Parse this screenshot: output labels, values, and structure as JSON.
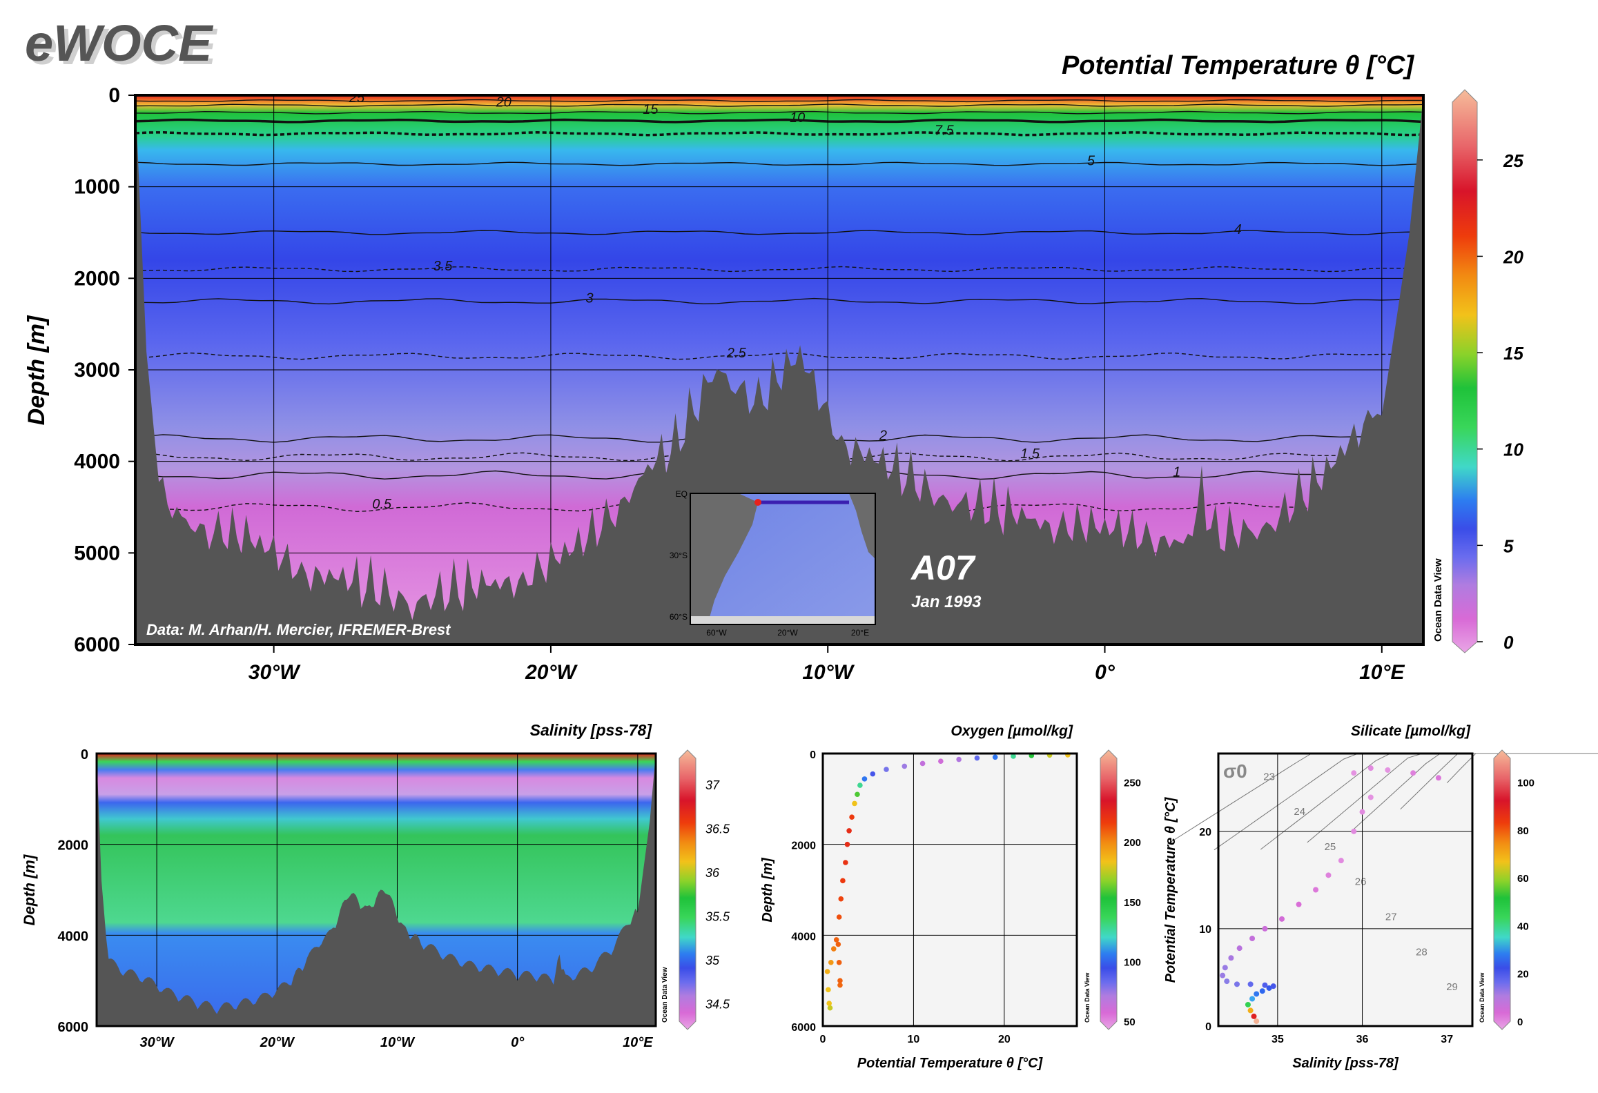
{
  "brand": "eWOCE",
  "colormap": [
    "#e9a6e6",
    "#d86ad6",
    "#c070dc",
    "#8e7fe6",
    "#5a66ee",
    "#3a4de8",
    "#2d6bf0",
    "#38a8f0",
    "#40d8c8",
    "#39d65a",
    "#1fc23a",
    "#8ad22a",
    "#f2c21a",
    "#f28a12",
    "#ee3c0c",
    "#d8142a",
    "#e8666a",
    "#f4b294"
  ],
  "main": {
    "chart_data": {
      "type": "heatmap",
      "title": "Potential Temperature θ [°C]",
      "ylabel": "Depth [m]",
      "xlim": [
        -35,
        11.5
      ],
      "ylim": [
        0,
        6000
      ],
      "x_ticks": [
        -30,
        -20,
        -10,
        0,
        10
      ],
      "x_tick_labels": [
        "30°W",
        "20°W",
        "10°W",
        "0°",
        "10°E"
      ],
      "y_ticks": [
        0,
        1000,
        2000,
        3000,
        4000,
        5000,
        6000
      ],
      "y_tick_labels": [
        "0",
        "1000",
        "2000",
        "3000",
        "4000",
        "5000",
        "6000"
      ],
      "colorbar": {
        "min": 0,
        "max": 28,
        "ticks": [
          0,
          5,
          10,
          15,
          20,
          25
        ],
        "tick_labels": [
          "0",
          "5",
          "10",
          "15",
          "20",
          "25"
        ]
      },
      "isotherms": [
        {
          "label": "25",
          "depth": 60
        },
        {
          "label": "20",
          "depth": 110
        },
        {
          "label": "15",
          "depth": 190
        },
        {
          "label": "10",
          "depth": 280
        },
        {
          "label": "7.5",
          "depth": 420
        },
        {
          "label": "5",
          "depth": 750
        },
        {
          "label": "4",
          "depth": 1500
        },
        {
          "label": "3.5",
          "depth": 1900
        },
        {
          "label": "3",
          "depth": 2250
        },
        {
          "label": "2.5",
          "depth": 2850
        },
        {
          "label": "2",
          "depth": 3750
        },
        {
          "label": "1.5",
          "depth": 3950
        },
        {
          "label": "1",
          "depth": 4150
        },
        {
          "label": "0.5",
          "depth": 4500
        }
      ],
      "bottom_profile": {
        "lon": [
          -35,
          -34.6,
          -34,
          -33,
          -31,
          -29,
          -27,
          -25,
          -23,
          -21,
          -19,
          -17.5,
          -16.5,
          -15.5,
          -14,
          -12.5,
          -11,
          -9.5,
          -8,
          -6,
          -4,
          -2,
          0,
          2,
          3,
          3.5,
          4,
          6,
          8,
          10,
          11,
          11.5
        ],
        "depth": [
          0,
          2800,
          4700,
          4900,
          5100,
          5400,
          5600,
          5750,
          5650,
          5500,
          5200,
          4700,
          4300,
          4100,
          3200,
          3600,
          3100,
          4000,
          4300,
          4600,
          4800,
          4900,
          5000,
          5050,
          5150,
          4600,
          5100,
          4900,
          4400,
          3500,
          1500,
          0
        ]
      }
    },
    "credit": "Data: M. Arhan/H. Mercier, IFREMER-Brest",
    "section": "A07",
    "date": "Jan 1993",
    "odv": "Ocean Data View"
  },
  "inset_map": {
    "lat_labels": [
      "EQ",
      "30°S",
      "60°S"
    ],
    "lon_labels": [
      "60°W",
      "20°W",
      "20°E"
    ]
  },
  "salinity": {
    "chart_data": {
      "type": "heatmap",
      "title": "Salinity [pss-78]",
      "ylabel": "Depth [m]",
      "xlim": [
        -35,
        11.5
      ],
      "ylim": [
        0,
        6000
      ],
      "y_tick_labels": [
        "0",
        "2000",
        "4000",
        "6000"
      ],
      "x_tick_labels": [
        "30°W",
        "20°W",
        "10°W",
        "0°",
        "10°E"
      ],
      "colorbar": {
        "min": 34.3,
        "max": 37.3,
        "tick_labels": [
          "34.5",
          "35",
          "35.5",
          "36",
          "36.5",
          "37"
        ]
      }
    },
    "odv": "Ocean Data View"
  },
  "oxygen": {
    "chart_data": {
      "type": "scatter",
      "title": "Oxygen [µmol/kg]",
      "xlabel": "Potential Temperature θ [°C]",
      "ylabel": "Depth [m]",
      "xlim": [
        0,
        28
      ],
      "ylim": [
        0,
        6000
      ],
      "x_tick_labels": [
        "0",
        "10",
        "20"
      ],
      "y_tick_labels": [
        "0",
        "2000",
        "4000",
        "6000"
      ],
      "colorbar": {
        "min": 50,
        "max": 270,
        "tick_labels": [
          "50",
          "100",
          "150",
          "200",
          "250"
        ]
      },
      "points": [
        [
          0.8,
          5600,
          200
        ],
        [
          0.6,
          5200,
          205
        ],
        [
          0.5,
          4800,
          210
        ],
        [
          0.9,
          4600,
          215
        ],
        [
          1.2,
          4300,
          220
        ],
        [
          1.5,
          4100,
          225
        ],
        [
          1.8,
          3600,
          228
        ],
        [
          2.0,
          3200,
          230
        ],
        [
          2.2,
          2800,
          232
        ],
        [
          2.5,
          2400,
          234
        ],
        [
          2.7,
          2000,
          236
        ],
        [
          2.9,
          1700,
          236
        ],
        [
          3.2,
          1400,
          232
        ],
        [
          3.5,
          1100,
          205
        ],
        [
          3.8,
          900,
          185
        ],
        [
          4.1,
          700,
          160
        ],
        [
          4.6,
          560,
          130
        ],
        [
          5.5,
          450,
          110
        ],
        [
          7,
          350,
          95
        ],
        [
          9,
          280,
          85
        ],
        [
          11,
          220,
          75
        ],
        [
          13,
          170,
          68
        ],
        [
          15,
          130,
          80
        ],
        [
          17,
          100,
          100
        ],
        [
          19,
          80,
          130
        ],
        [
          21,
          60,
          160
        ],
        [
          23,
          45,
          180
        ],
        [
          25,
          35,
          200
        ],
        [
          27,
          30,
          205
        ],
        [
          1.7,
          4200,
          225
        ],
        [
          1.8,
          4600,
          225
        ],
        [
          1.9,
          5000,
          225
        ],
        [
          1.9,
          5100,
          224
        ],
        [
          0.7,
          5500,
          205
        ]
      ]
    },
    "odv": "Ocean Data View"
  },
  "silicate": {
    "chart_data": {
      "type": "scatter",
      "title": "Silicate [µmol/kg]",
      "xlabel": "Salinity [pss-78]",
      "ylabel": "Potential Temperature θ [°C]",
      "xlim": [
        34.3,
        37.3
      ],
      "ylim": [
        0,
        28
      ],
      "x_tick_labels": [
        "35",
        "36",
        "37"
      ],
      "y_tick_labels": [
        "0",
        "10",
        "20"
      ],
      "colorbar": {
        "min": 0,
        "max": 110,
        "tick_labels": [
          "0",
          "20",
          "40",
          "60",
          "80",
          "100"
        ]
      },
      "sigma_label": "σ0",
      "isopycnal_labels": [
        "23",
        "24",
        "25",
        "26",
        "27",
        "28",
        "29"
      ],
      "points": [
        [
          34.75,
          0.5,
          110
        ],
        [
          34.72,
          1.0,
          95
        ],
        [
          34.68,
          1.6,
          80
        ],
        [
          34.65,
          2.2,
          60
        ],
        [
          34.7,
          2.8,
          45
        ],
        [
          34.75,
          3.3,
          40
        ],
        [
          34.82,
          3.6,
          38
        ],
        [
          34.9,
          3.9,
          35
        ],
        [
          34.95,
          4.1,
          30
        ],
        [
          34.85,
          4.2,
          28
        ],
        [
          34.68,
          4.3,
          25
        ],
        [
          34.52,
          4.3,
          22
        ],
        [
          34.4,
          4.6,
          20
        ],
        [
          34.35,
          5.2,
          18
        ],
        [
          34.38,
          6.0,
          18
        ],
        [
          34.45,
          7.0,
          16
        ],
        [
          34.55,
          8.0,
          14
        ],
        [
          34.7,
          9.0,
          12
        ],
        [
          34.85,
          10.0,
          10
        ],
        [
          35.05,
          11.0,
          8
        ],
        [
          35.25,
          12.5,
          6
        ],
        [
          35.45,
          14.0,
          5
        ],
        [
          35.6,
          15.5,
          4
        ],
        [
          35.75,
          17.0,
          3
        ],
        [
          35.9,
          20.0,
          3
        ],
        [
          36.0,
          22.0,
          3
        ],
        [
          36.1,
          23.5,
          2
        ],
        [
          35.9,
          26.0,
          2
        ],
        [
          36.1,
          26.5,
          3
        ],
        [
          36.3,
          26.3,
          2
        ],
        [
          36.6,
          26.0,
          4
        ],
        [
          36.9,
          25.5,
          5
        ]
      ]
    },
    "odv": "Ocean Data View"
  }
}
